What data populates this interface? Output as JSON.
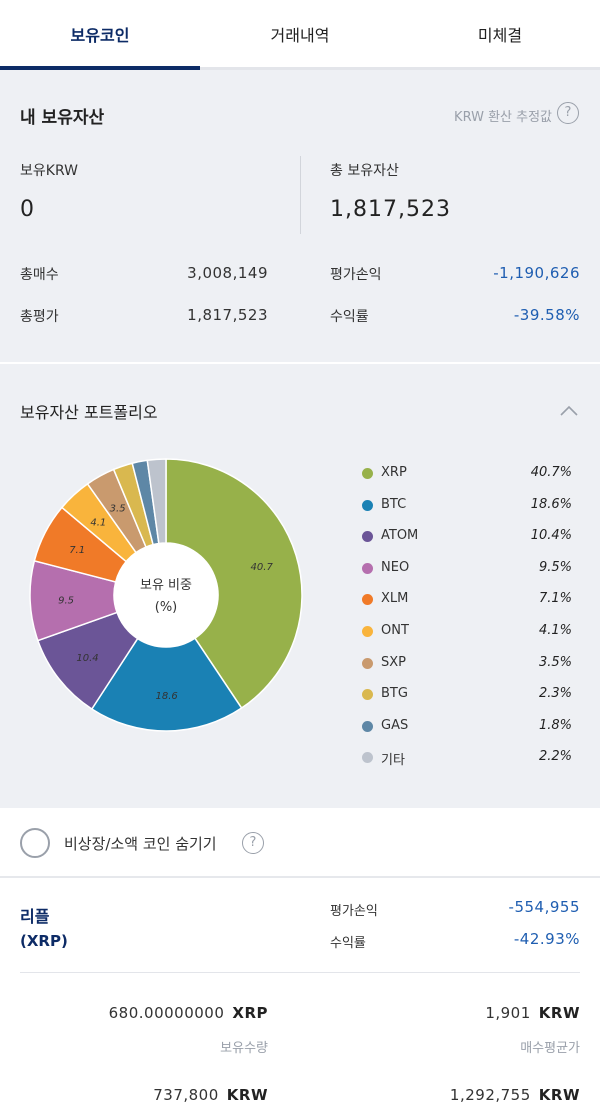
{
  "tabs": [
    {
      "label": "보유코인",
      "active": true
    },
    {
      "label": "거래내역",
      "active": false
    },
    {
      "label": "미체결",
      "active": false
    }
  ],
  "assets": {
    "title": "내 보유자산",
    "krw_note": "KRW 환산 추정값",
    "held_krw_label": "보유KRW",
    "held_krw_value": "0",
    "total_label": "총 보유자산",
    "total_value": "1,817,523",
    "buy_label": "총매수",
    "buy_value": "3,008,149",
    "eval_label": "총평가",
    "eval_value": "1,817,523",
    "pnl_label": "평가손익",
    "pnl_value": "-1,190,626",
    "rate_label": "수익률",
    "rate_value": "-39.58%"
  },
  "portfolio": {
    "title": "보유자산 포트폴리오",
    "center_line1": "보유 비중",
    "center_line2": "(%)"
  },
  "chart_data": {
    "type": "pie",
    "categories": [
      "XRP",
      "BTC",
      "ATOM",
      "NEO",
      "XLM",
      "ONT",
      "SXP",
      "BTG",
      "GAS",
      "기타"
    ],
    "values": [
      40.7,
      18.6,
      10.4,
      9.5,
      7.1,
      4.1,
      3.5,
      2.3,
      1.8,
      2.2
    ],
    "value_labels": [
      "40.7%",
      "18.6%",
      "10.4%",
      "9.5%",
      "7.1%",
      "4.1%",
      "3.5%",
      "2.3%",
      "1.8%",
      "2.2%"
    ],
    "slice_labels": [
      "40.7",
      "18.6",
      "10.4",
      "9.5",
      "7.1",
      "4.1",
      "3.5",
      "",
      "",
      ""
    ],
    "colors": [
      "#97b14a",
      "#1a81b4",
      "#6b5597",
      "#b56fae",
      "#f07a28",
      "#f9b43c",
      "#c99a6e",
      "#d9b84f",
      "#5e87a6",
      "#bdc3cd"
    ],
    "legend_position": "right"
  },
  "hide_row": {
    "label": "비상장/소액 코인 숨기기"
  },
  "coin": {
    "name": "리플",
    "symbol": "(XRP)",
    "pnl_label": "평가손익",
    "pnl_value": "-554,955",
    "rate_label": "수익률",
    "rate_value": "-42.93%",
    "qty_value": "680.00000000",
    "qty_unit": "XRP",
    "qty_label": "보유수량",
    "avg_value": "1,901",
    "avg_unit": "KRW",
    "avg_label": "매수평균가",
    "eval_value": "737,800",
    "eval_unit": "KRW",
    "buy_value": "1,292,755",
    "buy_unit": "KRW"
  }
}
